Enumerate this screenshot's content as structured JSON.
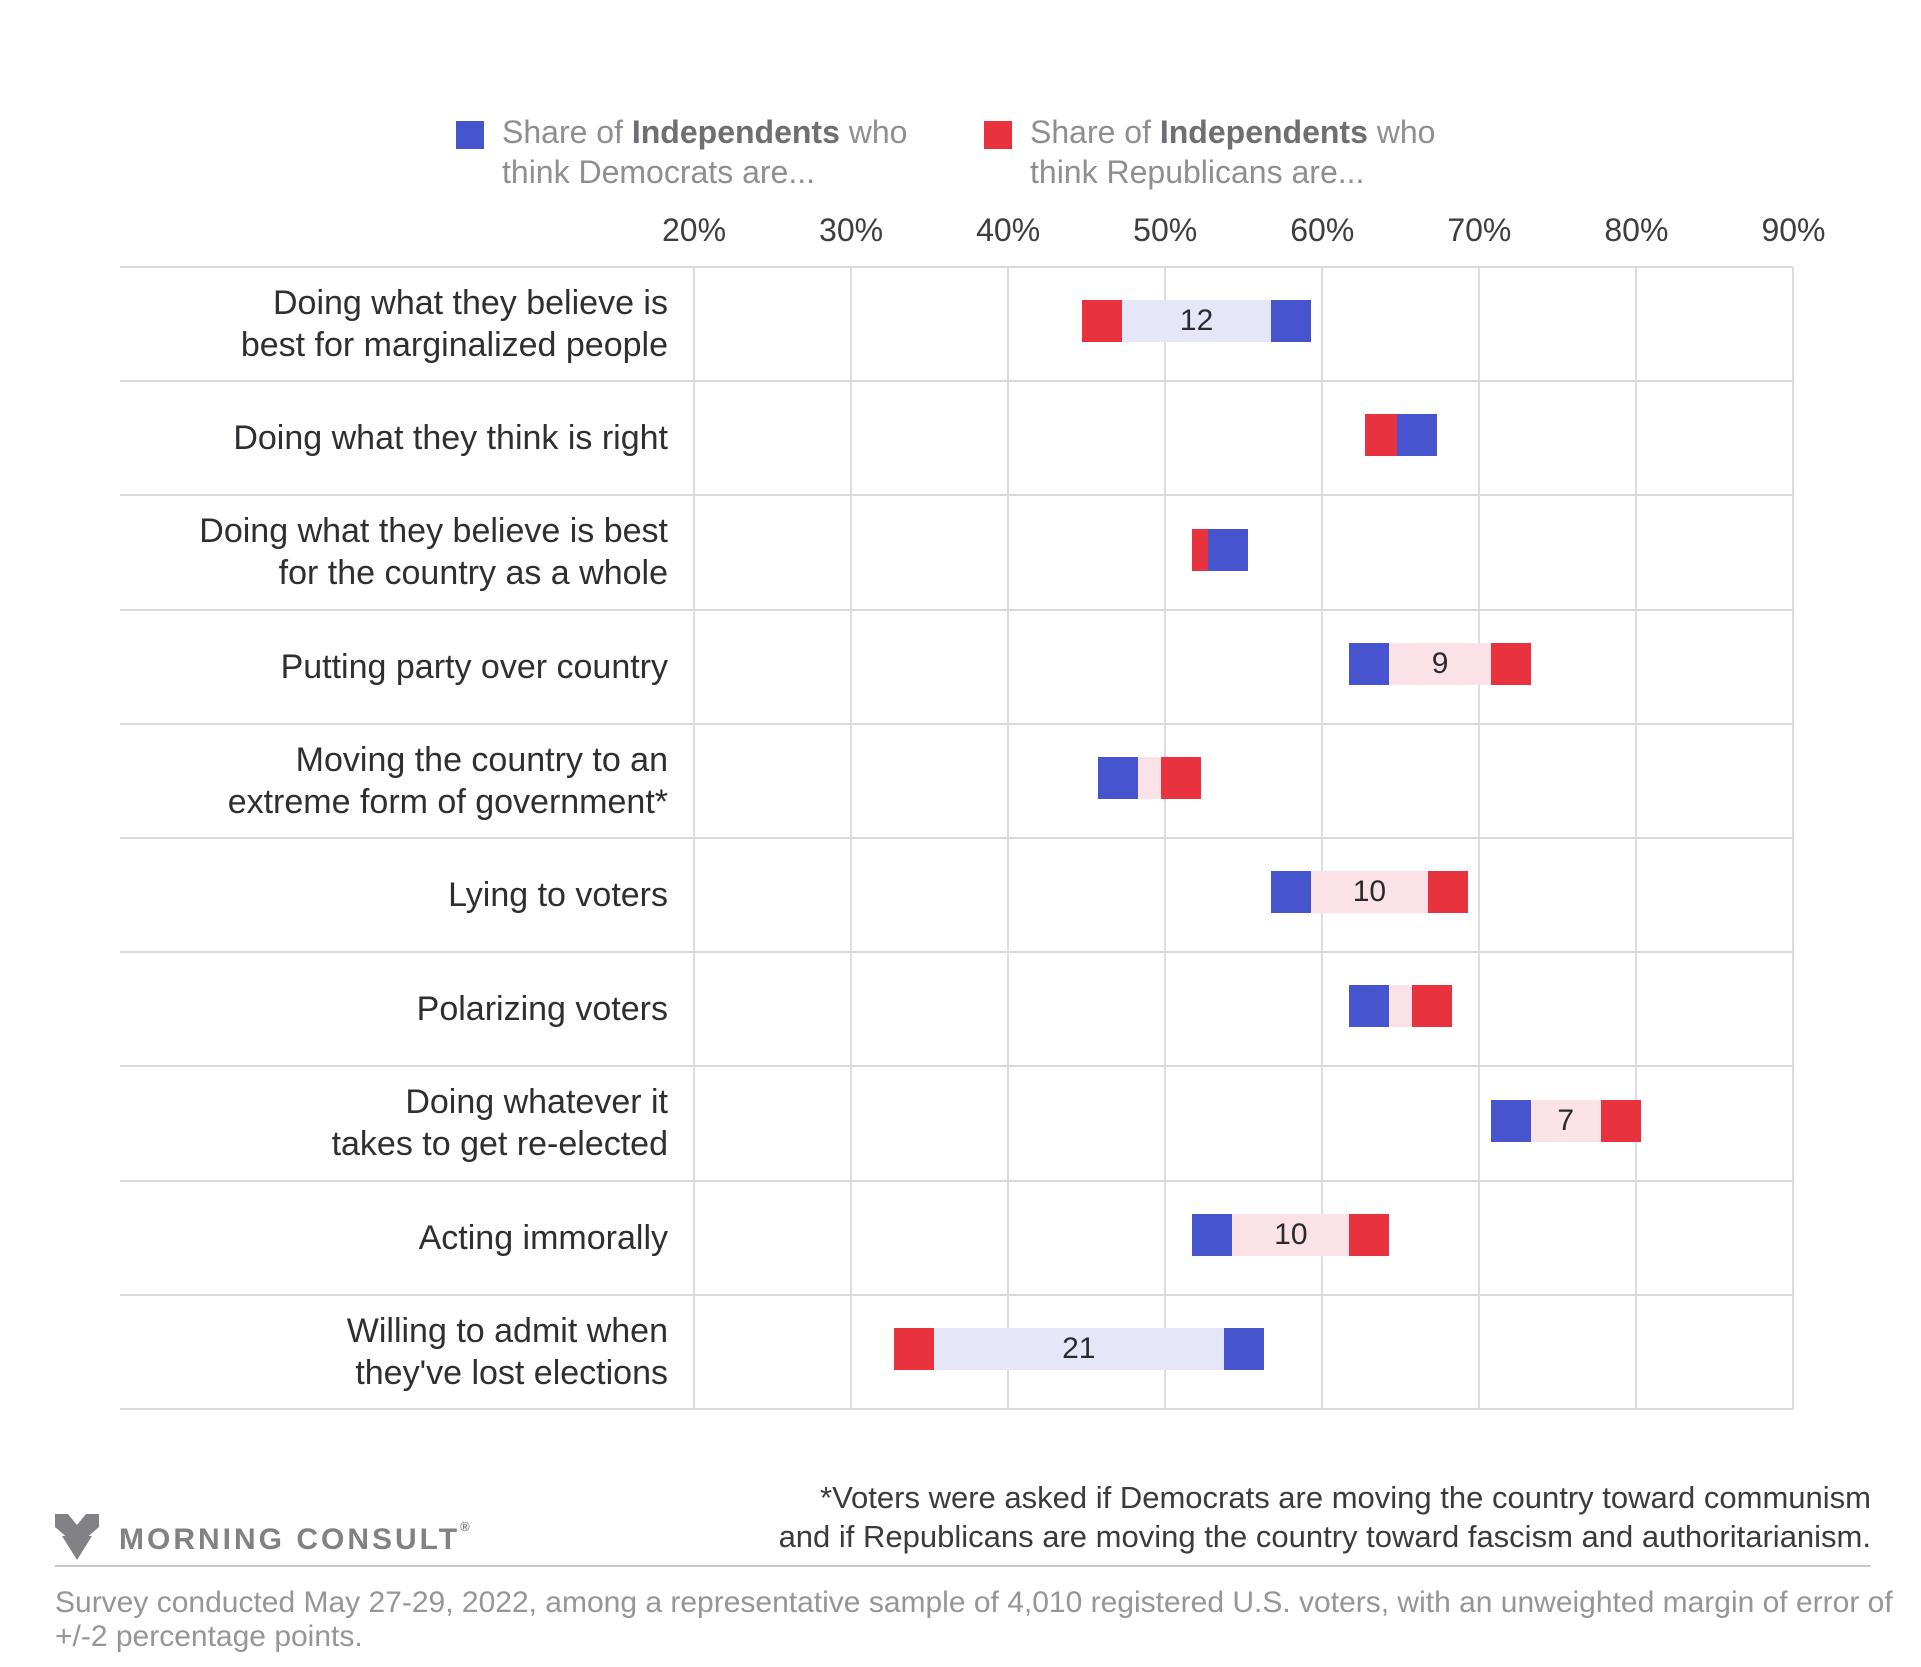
{
  "legend": {
    "items": [
      {
        "series": "Democrats",
        "color": "#4655cd",
        "prefix": "Share of ",
        "bold": "Independents",
        "suffix": " who",
        "line2": "think Democrats are..."
      },
      {
        "series": "Republicans",
        "color": "#e8333e",
        "prefix": "Share of ",
        "bold": "Independents",
        "suffix": " who",
        "line2": "think Republicans are..."
      }
    ]
  },
  "chart_data": {
    "type": "dumbbell-bar",
    "orientation": "horizontal",
    "x_axis": {
      "min": 20,
      "max": 90,
      "tick_step": 10,
      "tick_labels": [
        "20%",
        "30%",
        "40%",
        "50%",
        "60%",
        "70%",
        "80%",
        "90%"
      ],
      "grid": true
    },
    "series": [
      {
        "name": "Share of Independents who think Democrats are...",
        "color": "#4655cd"
      },
      {
        "name": "Share of Independents who think Republicans are...",
        "color": "#e8333e"
      }
    ],
    "band_colors": {
      "dem_higher": "#e5e7f8",
      "rep_higher": "#fbe2e7"
    },
    "rows": [
      {
        "label": "Doing what they believe is best for marginalized people",
        "label_lines": [
          "Doing what they believe is",
          "best for marginalized people"
        ],
        "democrats": 58,
        "republicans": 46,
        "gap_label": "12"
      },
      {
        "label": "Doing what they think is right",
        "label_lines": [
          "Doing what they think is right"
        ],
        "democrats": 66,
        "republicans": 64,
        "gap_label": null
      },
      {
        "label": "Doing what they believe is best for the country as a whole",
        "label_lines": [
          "Doing what they believe is best",
          "for the country as a whole"
        ],
        "democrats": 54,
        "republicans": 53,
        "gap_label": null
      },
      {
        "label": "Putting party over country",
        "label_lines": [
          "Putting party over country"
        ],
        "democrats": 63,
        "republicans": 72,
        "gap_label": "9"
      },
      {
        "label": "Moving the country to an extreme form of government*",
        "label_lines": [
          "Moving the country to an",
          "extreme form of government*"
        ],
        "democrats": 47,
        "republicans": 51,
        "gap_label": null
      },
      {
        "label": "Lying to voters",
        "label_lines": [
          "Lying to voters"
        ],
        "democrats": 58,
        "republicans": 68,
        "gap_label": "10"
      },
      {
        "label": "Polarizing voters",
        "label_lines": [
          "Polarizing voters"
        ],
        "democrats": 63,
        "republicans": 67,
        "gap_label": null
      },
      {
        "label": "Doing whatever it takes to get re-elected",
        "label_lines": [
          "Doing whatever it",
          "takes to get re-elected"
        ],
        "democrats": 72,
        "republicans": 79,
        "gap_label": "7"
      },
      {
        "label": "Acting immorally",
        "label_lines": [
          "Acting immorally"
        ],
        "democrats": 53,
        "republicans": 63,
        "gap_label": "10"
      },
      {
        "label": "Willing to admit when they've lost elections",
        "label_lines": [
          "Willing to admit when",
          "they've lost elections"
        ],
        "democrats": 55,
        "republicans": 34,
        "gap_label": "21"
      }
    ]
  },
  "footer": {
    "logo_text": "MORNING CONSULT",
    "logo_reg": "®",
    "footnote_line1": "*Voters were asked if Democrats are moving the country toward communism",
    "footnote_line2": "and if Republicans are moving the country toward fascism and authoritarianism.",
    "survey_note": "Survey conducted May 27-29, 2022, among a representative sample of 4,010 registered U.S. voters, with an unweighted margin of error of +/-2 percentage points."
  }
}
